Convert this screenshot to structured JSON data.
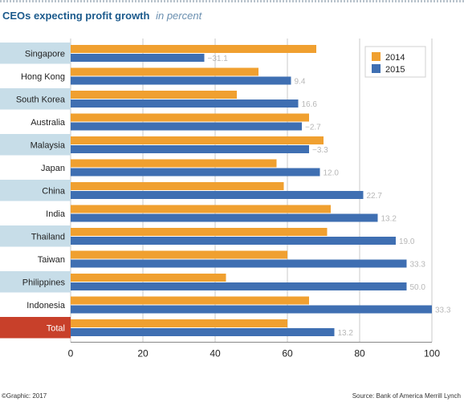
{
  "title": "CEOs expecting profit growth",
  "subtitle": "in percent",
  "footer": {
    "left": "©Graphic: 2017",
    "right": "Source: Bank of America Merrill Lynch"
  },
  "colors": {
    "series_2014": "#f0a030",
    "series_2015": "#3f6fb2",
    "label_band": "#c7dde8",
    "total_band": "#c8402a",
    "grid": "#c9c9c9",
    "delta_text": "#b7b7b7"
  },
  "chart_data": {
    "type": "bar",
    "orientation": "horizontal",
    "categories": [
      "Singapore",
      "Hong Kong",
      "South Korea",
      "Australia",
      "Malaysia",
      "Japan",
      "China",
      "India",
      "Thailand",
      "Taiwan",
      "Philippines",
      "Indonesia",
      "Total"
    ],
    "series": [
      {
        "name": "2014",
        "values": [
          68,
          52,
          46,
          66,
          70,
          57,
          59,
          72,
          71,
          60,
          43,
          66,
          60
        ]
      },
      {
        "name": "2015",
        "values": [
          37,
          61,
          63,
          64,
          66,
          69,
          81,
          85,
          90,
          93,
          93,
          100,
          73
        ]
      }
    ],
    "annotations": [
      "−31.1",
      "9.4",
      "16.6",
      "−2.7",
      "−3.3",
      "12.0",
      "22.7",
      "13.2",
      "19.0",
      "33.3",
      "50.0",
      "33.3",
      "13.2"
    ],
    "xlim": [
      0,
      100
    ],
    "xticks": [
      0,
      20,
      40,
      60,
      80,
      100
    ],
    "grid": true,
    "legend_position": "top-right"
  }
}
